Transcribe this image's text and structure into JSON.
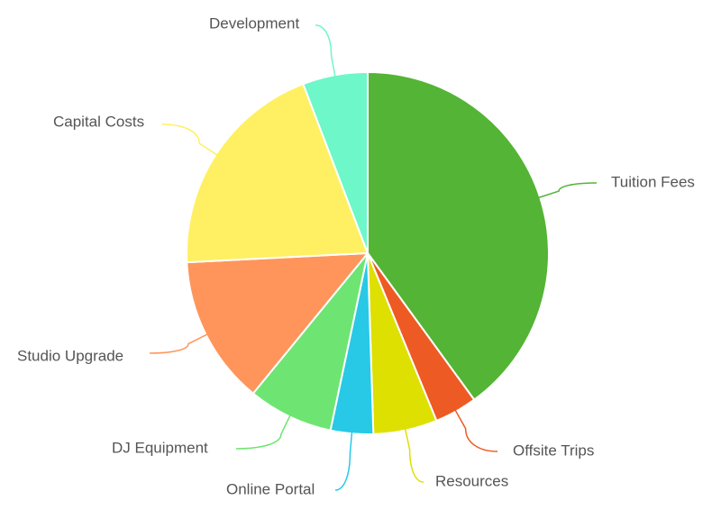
{
  "chart_data": {
    "type": "pie",
    "title": "",
    "slices": [
      {
        "label": "Tuition Fees",
        "value": 40.0,
        "color": "#54b435"
      },
      {
        "label": "Offsite Trips",
        "value": 3.8,
        "color": "#ee5a24"
      },
      {
        "label": "Resources",
        "value": 5.7,
        "color": "#dde000"
      },
      {
        "label": "Online Portal",
        "value": 3.8,
        "color": "#27c9e6"
      },
      {
        "label": "DJ Equipment",
        "value": 7.6,
        "color": "#6ee572"
      },
      {
        "label": "Studio Upgrade",
        "value": 13.3,
        "color": "#ff955a"
      },
      {
        "label": "Capital Costs",
        "value": 20.0,
        "color": "#fff063"
      },
      {
        "label": "Development",
        "value": 5.8,
        "color": "#6ef7c8"
      }
    ],
    "start_angle": "top",
    "direction": "clockwise",
    "legend": "none",
    "labels": "outside-with-connectors"
  }
}
